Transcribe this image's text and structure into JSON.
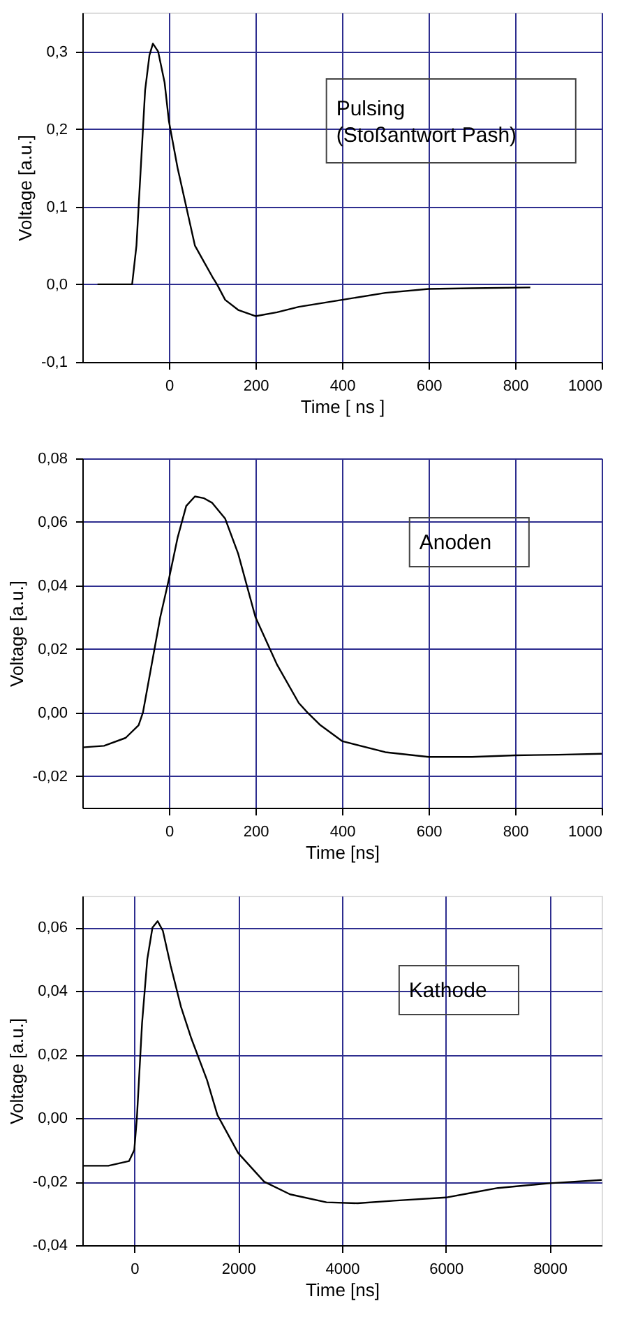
{
  "chart_data": [
    {
      "type": "line",
      "xlabel": "Time [ ns ]",
      "ylabel": "Voltage  [a.u.]",
      "annotations": [
        "Pulsing\n(Stoßantwort Pash)"
      ],
      "grid": true,
      "marker": "none",
      "line_style": "solid",
      "xlim": [
        -200,
        1000
      ],
      "ylim": [
        -0.1,
        0.35
      ],
      "xticks": [
        0,
        200,
        400,
        600,
        800,
        1000
      ],
      "yticks": [
        {
          "value": -0.1,
          "label": "-0,1"
        },
        {
          "value": 0.0,
          "label": "0,0"
        },
        {
          "value": 0.1,
          "label": "0,1"
        },
        {
          "value": 0.2,
          "label": "0,2"
        },
        {
          "value": 0.3,
          "label": "0,3"
        }
      ],
      "series": [
        {
          "color": "#000000",
          "x": [
            -165,
            -85,
            -75,
            -65,
            -55,
            -45,
            -37,
            -25,
            -10,
            0,
            20,
            40,
            60,
            80,
            100,
            111,
            130,
            160,
            200,
            250,
            300,
            400,
            500,
            600,
            700,
            835
          ],
          "values": [
            0,
            0,
            0.05,
            0.15,
            0.25,
            0.295,
            0.31,
            0.3,
            0.26,
            0.21,
            0.15,
            0.1,
            0.05,
            0.03,
            0.01,
            0,
            -0.02,
            -0.033,
            -0.041,
            -0.036,
            -0.029,
            -0.02,
            -0.011,
            -0.006,
            -0.005,
            -0.004
          ]
        }
      ]
    },
    {
      "type": "line",
      "xlabel": "Time  [ns]",
      "ylabel": "Voltage  [a.u.]",
      "annotations": [
        "Anoden"
      ],
      "grid": true,
      "marker": "none",
      "line_style": "solid",
      "xlim": [
        -200,
        1000
      ],
      "ylim": [
        -0.03,
        0.08
      ],
      "xticks": [
        0,
        200,
        400,
        600,
        800,
        1000
      ],
      "yticks": [
        {
          "value": -0.02,
          "label": "-0,02"
        },
        {
          "value": 0.0,
          "label": "0,00"
        },
        {
          "value": 0.02,
          "label": "0,02"
        },
        {
          "value": 0.04,
          "label": "0,04"
        },
        {
          "value": 0.06,
          "label": "0,06"
        },
        {
          "value": 0.08,
          "label": "0,08"
        }
      ],
      "series": [
        {
          "color": "#000000",
          "x": [
            -200,
            -150,
            -100,
            -70,
            -60,
            -40,
            -20,
            0,
            20,
            40,
            60,
            80,
            100,
            130,
            160,
            200,
            250,
            300,
            320,
            350,
            400,
            500,
            600,
            700,
            800,
            900,
            1000
          ],
          "values": [
            -0.011,
            -0.0105,
            -0.008,
            -0.004,
            0,
            0.015,
            0.03,
            0.042,
            0.055,
            0.065,
            0.068,
            0.0675,
            0.066,
            0.061,
            0.05,
            0.03,
            0.015,
            0.003,
            0,
            -0.004,
            -0.009,
            -0.0125,
            -0.014,
            -0.014,
            -0.0135,
            -0.0133,
            -0.013
          ]
        }
      ]
    },
    {
      "type": "line",
      "xlabel": "Time  [ns]",
      "ylabel": "Voltage  [a.u.]",
      "annotations": [
        "Kathode"
      ],
      "grid": true,
      "marker": "none",
      "line_style": "solid",
      "xlim": [
        -1000,
        9000
      ],
      "ylim": [
        -0.04,
        0.07
      ],
      "xticks": [
        0,
        2000,
        4000,
        6000,
        8000
      ],
      "yticks": [
        {
          "value": -0.04,
          "label": "-0,04"
        },
        {
          "value": -0.02,
          "label": "-0,02"
        },
        {
          "value": 0.0,
          "label": "0,00"
        },
        {
          "value": 0.02,
          "label": "0,02"
        },
        {
          "value": 0.04,
          "label": "0,04"
        },
        {
          "value": 0.06,
          "label": "0,06"
        }
      ],
      "series": [
        {
          "color": "#000000",
          "x": [
            -1000,
            -500,
            -100,
            0,
            50,
            150,
            250,
            350,
            450,
            550,
            700,
            900,
            1100,
            1400,
            1600,
            2000,
            2500,
            3000,
            3700,
            4300,
            5000,
            6000,
            6500,
            7000,
            8000,
            9000
          ],
          "values": [
            -0.015,
            -0.015,
            -0.0135,
            -0.01,
            0,
            0.03,
            0.05,
            0.06,
            0.062,
            0.059,
            0.048,
            0.035,
            0.025,
            0.012,
            0.001,
            -0.011,
            -0.02,
            -0.024,
            -0.0265,
            -0.0268,
            -0.026,
            -0.025,
            -0.0235,
            -0.022,
            -0.0205,
            -0.0195
          ]
        }
      ]
    }
  ]
}
